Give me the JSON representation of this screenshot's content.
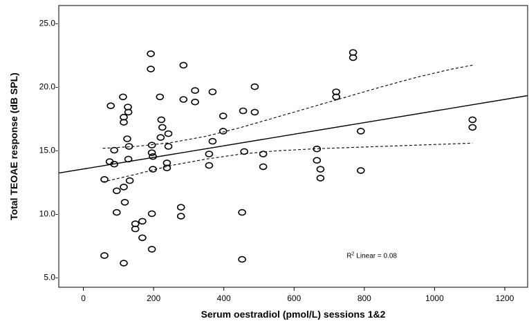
{
  "chart_data": {
    "type": "scatter",
    "xlabel": "Serum oestradiol (pmol/L) sessions 1&2",
    "ylabel": "Total TEOAE response (dB SPL)",
    "xlim": [
      -70,
      1265
    ],
    "ylim": [
      4.2,
      26.4
    ],
    "x_ticks": [
      0,
      200,
      400,
      600,
      800,
      1000,
      1200
    ],
    "x_tick_labels": [
      "0",
      "200",
      "400",
      "600",
      "800",
      "1000",
      "1200"
    ],
    "y_ticks": [
      5.0,
      10.0,
      15.0,
      20.0,
      25.0
    ],
    "y_tick_labels": [
      "5.0-",
      "10.0-",
      "15.0-",
      "20.0-",
      "25.0-"
    ],
    "grid": false,
    "annotation": {
      "r2_superscript_label": "R",
      "r2_superscript": "2",
      "r2_text": " Linear = 0.08",
      "x": 750,
      "y": 6.5
    },
    "points": [
      {
        "x": 60,
        "y": 12.7
      },
      {
        "x": 60,
        "y": 6.7
      },
      {
        "x": 75,
        "y": 14.1
      },
      {
        "x": 78,
        "y": 18.5
      },
      {
        "x": 88,
        "y": 15.0
      },
      {
        "x": 88,
        "y": 13.9
      },
      {
        "x": 95,
        "y": 11.8
      },
      {
        "x": 95,
        "y": 10.1
      },
      {
        "x": 113,
        "y": 19.2
      },
      {
        "x": 115,
        "y": 17.6
      },
      {
        "x": 115,
        "y": 17.2
      },
      {
        "x": 115,
        "y": 12.1
      },
      {
        "x": 118,
        "y": 10.9
      },
      {
        "x": 115,
        "y": 6.1
      },
      {
        "x": 127,
        "y": 18.4
      },
      {
        "x": 128,
        "y": 18.0
      },
      {
        "x": 125,
        "y": 15.9
      },
      {
        "x": 130,
        "y": 15.3
      },
      {
        "x": 128,
        "y": 14.3
      },
      {
        "x": 132,
        "y": 12.6
      },
      {
        "x": 148,
        "y": 9.2
      },
      {
        "x": 148,
        "y": 8.8
      },
      {
        "x": 168,
        "y": 9.4
      },
      {
        "x": 168,
        "y": 8.1
      },
      {
        "x": 192,
        "y": 22.6
      },
      {
        "x": 192,
        "y": 21.4
      },
      {
        "x": 195,
        "y": 15.4
      },
      {
        "x": 195,
        "y": 14.8
      },
      {
        "x": 198,
        "y": 14.5
      },
      {
        "x": 198,
        "y": 13.5
      },
      {
        "x": 195,
        "y": 10.0
      },
      {
        "x": 195,
        "y": 7.2
      },
      {
        "x": 218,
        "y": 19.2
      },
      {
        "x": 222,
        "y": 17.4
      },
      {
        "x": 225,
        "y": 16.8
      },
      {
        "x": 220,
        "y": 16.0
      },
      {
        "x": 238,
        "y": 14.0
      },
      {
        "x": 238,
        "y": 13.6
      },
      {
        "x": 242,
        "y": 16.3
      },
      {
        "x": 242,
        "y": 15.3
      },
      {
        "x": 278,
        "y": 10.5
      },
      {
        "x": 278,
        "y": 9.8
      },
      {
        "x": 285,
        "y": 21.7
      },
      {
        "x": 285,
        "y": 19.0
      },
      {
        "x": 318,
        "y": 19.7
      },
      {
        "x": 318,
        "y": 18.8
      },
      {
        "x": 358,
        "y": 14.7
      },
      {
        "x": 358,
        "y": 13.8
      },
      {
        "x": 368,
        "y": 19.6
      },
      {
        "x": 368,
        "y": 15.7
      },
      {
        "x": 398,
        "y": 17.7
      },
      {
        "x": 398,
        "y": 16.5
      },
      {
        "x": 455,
        "y": 18.1
      },
      {
        "x": 458,
        "y": 14.9
      },
      {
        "x": 452,
        "y": 10.1
      },
      {
        "x": 452,
        "y": 6.4
      },
      {
        "x": 488,
        "y": 20.0
      },
      {
        "x": 488,
        "y": 18.0
      },
      {
        "x": 512,
        "y": 14.7
      },
      {
        "x": 512,
        "y": 13.7
      },
      {
        "x": 665,
        "y": 15.1
      },
      {
        "x": 665,
        "y": 14.2
      },
      {
        "x": 675,
        "y": 13.5
      },
      {
        "x": 675,
        "y": 12.8
      },
      {
        "x": 720,
        "y": 19.6
      },
      {
        "x": 720,
        "y": 19.2
      },
      {
        "x": 768,
        "y": 22.7
      },
      {
        "x": 768,
        "y": 22.3
      },
      {
        "x": 790,
        "y": 16.5
      },
      {
        "x": 790,
        "y": 13.4
      },
      {
        "x": 1108,
        "y": 17.4
      },
      {
        "x": 1108,
        "y": 16.8
      }
    ],
    "fit_line": {
      "style": "solid",
      "x": [
        -70,
        1265
      ],
      "y": [
        13.2,
        19.3
      ]
    },
    "ci_upper": {
      "style": "dashed",
      "x": [
        55,
        150,
        250,
        350,
        450,
        550,
        650,
        750,
        850,
        950,
        1050,
        1108
      ],
      "y": [
        15.15,
        15.3,
        15.6,
        16.1,
        16.8,
        17.6,
        18.4,
        19.2,
        20.0,
        20.75,
        21.4,
        21.7
      ]
    },
    "ci_lower": {
      "style": "dashed",
      "x": [
        55,
        150,
        250,
        350,
        450,
        550,
        650,
        750,
        850,
        950,
        1050,
        1108
      ],
      "y": [
        12.5,
        13.1,
        13.8,
        14.3,
        14.7,
        14.95,
        15.1,
        15.2,
        15.3,
        15.4,
        15.5,
        15.55
      ]
    }
  }
}
